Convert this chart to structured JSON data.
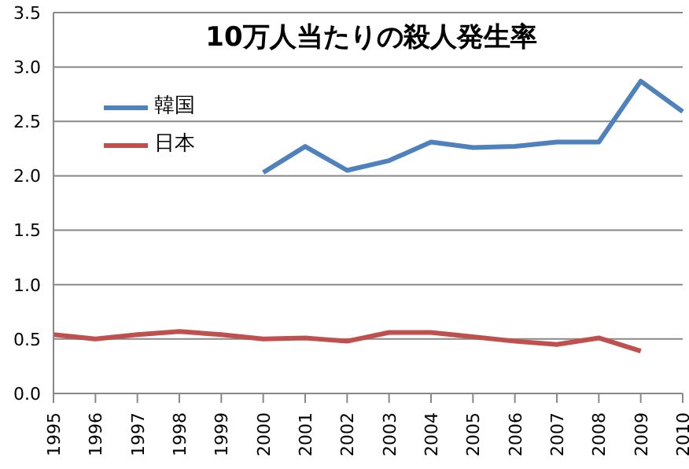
{
  "chart_data": {
    "type": "line",
    "title": "10万人当たりの殺人発生率",
    "categories": [
      "1995",
      "1996",
      "1997",
      "1998",
      "1999",
      "2000",
      "2001",
      "2002",
      "2003",
      "2004",
      "2005",
      "2006",
      "2007",
      "2008",
      "2009",
      "2010"
    ],
    "series": [
      {
        "name": "韓国",
        "color": "#4f81bd",
        "values": [
          null,
          null,
          null,
          null,
          null,
          2.03,
          2.27,
          2.05,
          2.14,
          2.31,
          2.26,
          2.27,
          2.31,
          2.31,
          2.87,
          2.59
        ]
      },
      {
        "name": "日本",
        "color": "#c0504d",
        "values": [
          0.54,
          0.5,
          0.54,
          0.57,
          0.54,
          0.5,
          0.51,
          0.48,
          0.56,
          0.56,
          0.52,
          0.48,
          0.45,
          0.51,
          0.39,
          null
        ]
      }
    ],
    "ylim": [
      0,
      3.5
    ],
    "yticks": [
      {
        "value": 0,
        "label": "0.0"
      },
      0.5,
      {
        "value": 1,
        "label": "1.0"
      },
      1.5,
      {
        "value": 2,
        "label": "2.0"
      },
      2.5,
      {
        "value": 3,
        "label": "3.0"
      },
      3.5
    ],
    "grid": "y",
    "legend": "top left",
    "marker": "none",
    "line_style": "solid"
  }
}
